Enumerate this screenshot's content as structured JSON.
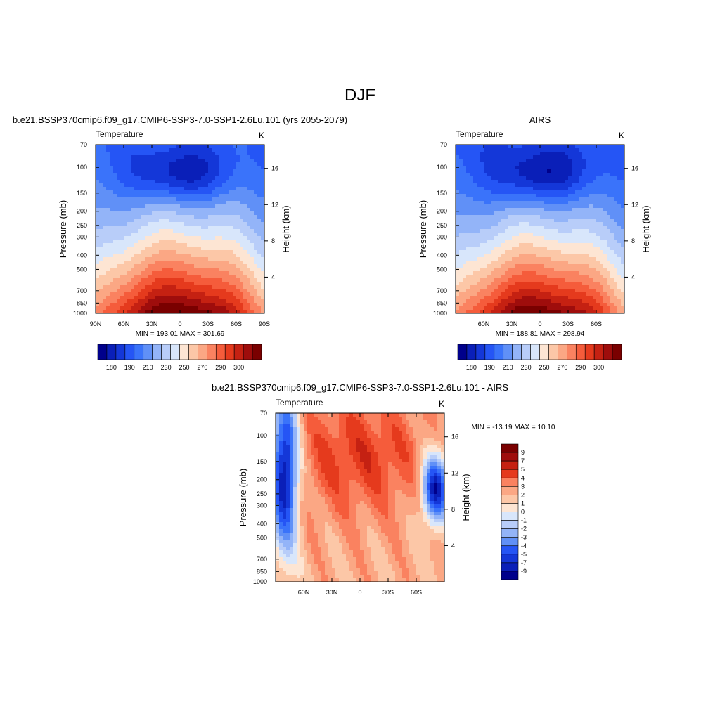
{
  "page_title": "DJF",
  "colors": {
    "temp_levels": [
      "#00008b",
      "#0a1fb8",
      "#1437d8",
      "#2555f5",
      "#3a73fa",
      "#6090f7",
      "#93b4f8",
      "#b8cdf9",
      "#d8e6fb",
      "#fde5d3",
      "#fcc7a7",
      "#fba784",
      "#fa8260",
      "#f55c3b",
      "#e53a1d",
      "#c52112",
      "#9f0d0c",
      "#7a0000"
    ],
    "diff_levels": [
      "#00008b",
      "#0a1fb8",
      "#1437d8",
      "#2555f5",
      "#3a73fa",
      "#6090f7",
      "#93b4f8",
      "#b8cdf9",
      "#d8e6fb",
      "#fde5d3",
      "#fcc7a7",
      "#fba784",
      "#fa8260",
      "#f55c3b",
      "#e53a1d",
      "#c52112",
      "#9f0d0c",
      "#7a0000"
    ]
  },
  "chart_data": [
    {
      "type": "heatmap",
      "title": "b.e21.BSSP370cmip6.f09_g17.CMIP6-SSP3-7.0-SSP1-2.6Lu.101 (yrs 2055-2079)",
      "left_label": "Temperature",
      "right_label": "K",
      "ylabel": "Pressure (mb)",
      "y2label": "Height (km)",
      "x_ticks": [
        "90N",
        "60N",
        "30N",
        "0",
        "30S",
        "60S",
        "90S"
      ],
      "x_values": [
        90,
        60,
        30,
        0,
        -30,
        -60,
        -90
      ],
      "xlim": [
        90,
        -90
      ],
      "y_ticks": [
        "70",
        "100",
        "150",
        "200",
        "250",
        "300",
        "400",
        "500",
        "700",
        "850",
        "1000"
      ],
      "y_values": [
        70,
        100,
        150,
        200,
        250,
        300,
        400,
        500,
        700,
        850,
        1000
      ],
      "ylim": [
        70,
        1000
      ],
      "y_scale": "log",
      "y2_ticks": [
        "4",
        "8",
        "12",
        "16"
      ],
      "y2_values": [
        4,
        8,
        12,
        16
      ],
      "stats": "MIN = 193.01  MAX = 301.69",
      "min": 193.01,
      "max": 301.69,
      "colorbar": {
        "orientation": "horizontal",
        "labels": [
          "180",
          "190",
          "210",
          "230",
          "250",
          "270",
          "290",
          "300"
        ],
        "levels": [
          180,
          185,
          190,
          200,
          210,
          220,
          230,
          240,
          250,
          260,
          270,
          280,
          290,
          295,
          300
        ]
      }
    },
    {
      "type": "heatmap",
      "title": "AIRS",
      "left_label": "Temperature",
      "right_label": "K",
      "ylabel": "Pressure (mb)",
      "y2label": "Height (km)",
      "x_ticks": [
        "60N",
        "30N",
        "0",
        "30S",
        "60S"
      ],
      "x_values": [
        60,
        30,
        0,
        -30,
        -60
      ],
      "xlim": [
        90,
        -90
      ],
      "y_ticks": [
        "70",
        "100",
        "150",
        "200",
        "250",
        "300",
        "400",
        "500",
        "700",
        "850",
        "1000"
      ],
      "y_values": [
        70,
        100,
        150,
        200,
        250,
        300,
        400,
        500,
        700,
        850,
        1000
      ],
      "ylim": [
        70,
        1000
      ],
      "y_scale": "log",
      "y2_ticks": [
        "4",
        "8",
        "12",
        "16"
      ],
      "y2_values": [
        4,
        8,
        12,
        16
      ],
      "stats": "MIN = 188.81  MAX = 298.94",
      "min": 188.81,
      "max": 298.94,
      "colorbar": {
        "orientation": "horizontal",
        "labels": [
          "180",
          "190",
          "210",
          "230",
          "250",
          "270",
          "290",
          "300"
        ],
        "levels": [
          180,
          185,
          190,
          200,
          210,
          220,
          230,
          240,
          250,
          260,
          270,
          280,
          290,
          295,
          300
        ]
      }
    },
    {
      "type": "heatmap",
      "title": "b.e21.BSSP370cmip6.f09_g17.CMIP6-SSP3-7.0-SSP1-2.6Lu.101 - AIRS",
      "left_label": "Temperature",
      "right_label": "K",
      "ylabel": "Pressure (mb)",
      "y2label": "Height (km)",
      "x_ticks": [
        "60N",
        "30N",
        "0",
        "30S",
        "60S"
      ],
      "x_values": [
        60,
        30,
        0,
        -30,
        -60
      ],
      "xlim": [
        90,
        -90
      ],
      "y_ticks": [
        "70",
        "100",
        "150",
        "200",
        "250",
        "300",
        "400",
        "500",
        "700",
        "850",
        "1000"
      ],
      "y_values": [
        70,
        100,
        150,
        200,
        250,
        300,
        400,
        500,
        700,
        850,
        1000
      ],
      "ylim": [
        70,
        1000
      ],
      "y_scale": "log",
      "y2_ticks": [
        "4",
        "8",
        "12",
        "16"
      ],
      "y2_values": [
        4,
        8,
        12,
        16
      ],
      "stats": "MIN = -13.19  MAX =  10.10",
      "min": -13.19,
      "max": 10.1,
      "colorbar": {
        "orientation": "vertical",
        "labels": [
          "9",
          "7",
          "5",
          "4",
          "3",
          "2",
          "1",
          "0",
          "-1",
          "-2",
          "-3",
          "-4",
          "-5",
          "-7",
          "-9"
        ],
        "levels": [
          -9,
          -7,
          -5,
          -4,
          -3,
          -2,
          -1,
          0,
          1,
          2,
          3,
          4,
          5,
          7,
          9
        ]
      }
    }
  ]
}
